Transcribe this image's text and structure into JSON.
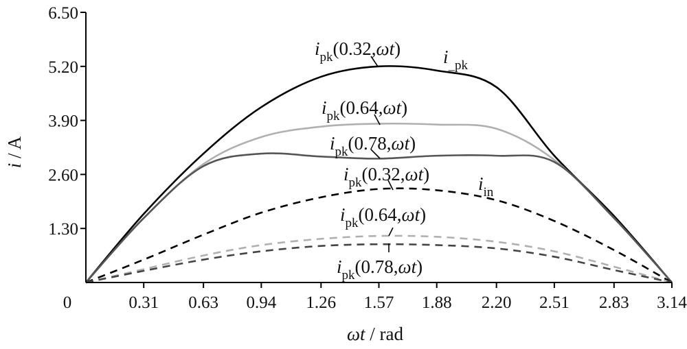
{
  "chart_data": {
    "type": "line",
    "title": "",
    "xlabel": {
      "italic": "ωt",
      "rest": " / rad"
    },
    "ylabel": {
      "italic": "i",
      "rest": " / A"
    },
    "xlim": [
      0,
      3.14
    ],
    "ylim": [
      0,
      6.5
    ],
    "x_ticks": [
      0.31,
      0.63,
      0.94,
      1.26,
      1.57,
      1.88,
      2.2,
      2.51,
      2.83,
      3.14
    ],
    "x_tick_labels": [
      "0.31",
      "0.63",
      "0.94",
      "1.26",
      "1.57",
      "1.88",
      "2.20",
      "2.51",
      "2.83",
      "3.14"
    ],
    "origin_label": "0",
    "y_ticks": [
      1.3,
      2.6,
      3.9,
      5.2,
      6.5
    ],
    "y_tick_labels": [
      "1.30",
      "2.60",
      "3.90",
      "5.20",
      "6.50"
    ],
    "grid": false,
    "series": [
      {
        "style": "solid",
        "color": "#000000",
        "x": [
          0,
          0.31,
          0.63,
          0.94,
          1.26,
          1.57,
          1.88,
          2.2,
          2.51,
          2.83,
          3.14
        ],
        "y": [
          0,
          1.65,
          3.1,
          4.22,
          4.95,
          5.2,
          5.1,
          4.7,
          3.05,
          1.6,
          0
        ]
      },
      {
        "style": "solid",
        "color": "#b0b0b0",
        "x": [
          0,
          0.31,
          0.63,
          0.94,
          1.26,
          1.57,
          1.88,
          2.2,
          2.51,
          2.83,
          3.14
        ],
        "y": [
          0,
          1.55,
          2.85,
          3.5,
          3.75,
          3.82,
          3.8,
          3.7,
          2.95,
          1.55,
          0
        ]
      },
      {
        "style": "solid",
        "color": "#555555",
        "x": [
          0,
          0.31,
          0.63,
          0.94,
          1.26,
          1.57,
          1.88,
          2.2,
          2.51,
          2.83,
          3.14
        ],
        "y": [
          0,
          1.55,
          2.8,
          3.1,
          3.03,
          2.98,
          3.05,
          3.05,
          2.9,
          1.55,
          0
        ]
      },
      {
        "style": "dashed",
        "color": "#000000",
        "x": [
          0,
          0.31,
          0.63,
          0.94,
          1.26,
          1.57,
          1.88,
          2.2,
          2.51,
          2.83,
          3.14
        ],
        "y": [
          0,
          0.55,
          1.15,
          1.68,
          2.05,
          2.25,
          2.22,
          1.98,
          1.48,
          0.78,
          0
        ]
      },
      {
        "style": "dashed",
        "color": "#b0b0b0",
        "x": [
          0,
          0.31,
          0.63,
          0.94,
          1.26,
          1.57,
          1.88,
          2.2,
          2.51,
          2.83,
          3.14
        ],
        "y": [
          0,
          0.32,
          0.65,
          0.9,
          1.05,
          1.12,
          1.1,
          0.98,
          0.75,
          0.38,
          0
        ]
      },
      {
        "style": "dashed",
        "color": "#444444",
        "x": [
          0,
          0.31,
          0.63,
          0.94,
          1.26,
          1.57,
          1.88,
          2.2,
          2.51,
          2.83,
          3.14
        ],
        "y": [
          0,
          0.28,
          0.55,
          0.75,
          0.88,
          0.92,
          0.9,
          0.82,
          0.62,
          0.3,
          0
        ]
      }
    ],
    "annotations": [
      {
        "main": "i",
        "sub": "pk",
        "args": "(0.32,",
        "var": "ωt",
        "close": ")"
      },
      {
        "main": "i",
        "sub": "pk",
        "args": "(0.64,",
        "var": "ωt",
        "close": ")"
      },
      {
        "main": "i",
        "sub": "pk",
        "args": "(0.78,",
        "var": "ωt",
        "close": ")"
      },
      {
        "main": "i",
        "sub": "pk",
        "args": "(0.32,",
        "var": "ωt",
        "close": ")"
      },
      {
        "main": "i",
        "sub": "pk",
        "args": "(0.64,",
        "var": "ωt",
        "close": ")"
      },
      {
        "main": "i",
        "sub": "pk",
        "args": "(0.78,",
        "var": "ωt",
        "close": ")"
      },
      {
        "main": "i",
        "sub": "_pk",
        "args": "",
        "var": "",
        "close": ""
      },
      {
        "main": "i",
        "sub": "in",
        "args": "",
        "var": "",
        "close": ""
      }
    ]
  }
}
